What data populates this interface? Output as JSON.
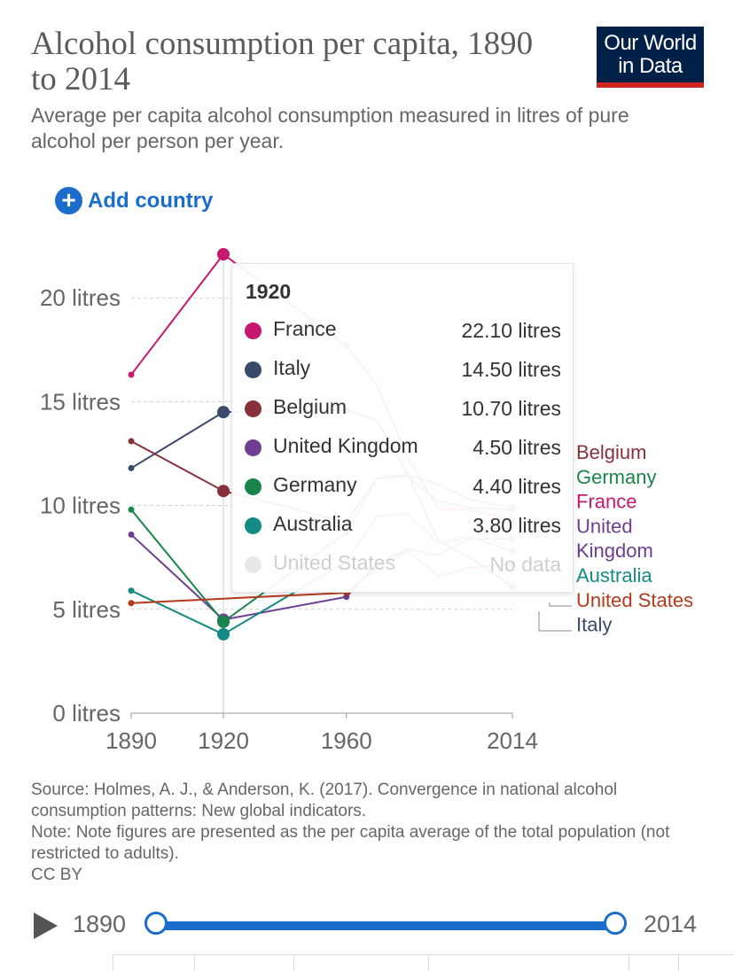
{
  "header": {
    "title": "Alcohol consumption per capita, 1890 to 2014",
    "subtitle": "Average per capita alcohol consumption measured in litres of pure alcohol per person per year.",
    "logo": "Our World in Data",
    "logo_line1": "Our World",
    "logo_line2": "in Data"
  },
  "controls": {
    "add_country_label": "Add country"
  },
  "chart_data": {
    "type": "line",
    "title": "Alcohol consumption per capita, 1890 to 2014",
    "ylim": [
      0,
      22.1
    ],
    "xlim": [
      1890,
      2014
    ],
    "y_ticks": [
      {
        "value": 0,
        "label": "0 litres"
      },
      {
        "value": 5,
        "label": "5 litres"
      },
      {
        "value": 10,
        "label": "10 litres"
      },
      {
        "value": 15,
        "label": "15 litres"
      },
      {
        "value": 20,
        "label": "20 litres"
      }
    ],
    "x_ticks": [
      {
        "value": 1890,
        "label": "1890"
      },
      {
        "value": 1920,
        "label": "1920"
      },
      {
        "value": 1960,
        "label": "1960"
      },
      {
        "value": 2014,
        "label": "2014"
      }
    ],
    "grid": true,
    "legend": "right",
    "highlight_year": 1920,
    "series": [
      {
        "name": "France",
        "color": "#c8176f",
        "x": [
          1890,
          1920,
          1960,
          1970,
          1980,
          1990,
          2000,
          2014
        ],
        "y": [
          16.3,
          22.1,
          17.7,
          15.8,
          12.3,
          9.8,
          9.8,
          9.3
        ]
      },
      {
        "name": "Italy",
        "color": "#3a4a6b",
        "x": [
          1890,
          1920,
          1960,
          1970,
          1980,
          1990,
          2000,
          2014
        ],
        "y": [
          11.8,
          14.5,
          14.6,
          14.1,
          11.5,
          8.3,
          7.5,
          6.1
        ]
      },
      {
        "name": "Belgium",
        "color": "#883039",
        "x": [
          1890,
          1920,
          1960,
          1970,
          1980,
          1990,
          2000,
          2014
        ],
        "y": [
          13.1,
          10.7,
          9.2,
          11.3,
          11.4,
          10.2,
          9.9,
          9.8
        ]
      },
      {
        "name": "United Kingdom",
        "color": "#6d3e91",
        "x": [
          1890,
          1920,
          1960,
          1970,
          1980,
          1990,
          2000,
          2014
        ],
        "y": [
          8.6,
          4.5,
          5.6,
          7.2,
          7.9,
          7.6,
          8.4,
          8.4
        ]
      },
      {
        "name": "Germany",
        "color": "#18864a",
        "x": [
          1890,
          1920,
          1960,
          1970,
          1980,
          1990,
          2000,
          2014
        ],
        "y": [
          9.8,
          4.4,
          8.7,
          11.3,
          11.5,
          11.0,
          10.3,
          9.9
        ]
      },
      {
        "name": "Australia",
        "color": "#148a84",
        "x": [
          1890,
          1920,
          1960,
          1970,
          1980,
          1990,
          2000,
          2014
        ],
        "y": [
          5.9,
          3.8,
          7.3,
          9.5,
          9.6,
          8.2,
          8.5,
          7.8
        ]
      },
      {
        "name": "United States",
        "color": "#b53a1a",
        "x": [
          1890,
          1960,
          1970,
          1980,
          1990,
          2000,
          2014
        ],
        "y": [
          5.3,
          5.8,
          7.0,
          7.8,
          6.6,
          7.0,
          7.2
        ]
      }
    ],
    "legend_labels": [
      {
        "text": "Belgium",
        "color": "#883039"
      },
      {
        "text": "Germany",
        "color": "#18864a"
      },
      {
        "text": "France",
        "color": "#c8176f"
      },
      {
        "text": "United",
        "color": "#6d3e91"
      },
      {
        "text": "Kingdom",
        "color": "#6d3e91"
      },
      {
        "text": "Australia",
        "color": "#148a84"
      },
      {
        "text": "United States",
        "color": "#b53a1a"
      },
      {
        "text": "Italy",
        "color": "#3a4a6b"
      }
    ]
  },
  "tooltip": {
    "year": "1920",
    "rows": [
      {
        "name": "France",
        "value": "22.10 litres",
        "color": "#c8176f"
      },
      {
        "name": "Italy",
        "value": "14.50 litres",
        "color": "#3a4a6b"
      },
      {
        "name": "Belgium",
        "value": "10.70 litres",
        "color": "#883039"
      },
      {
        "name": "United Kingdom",
        "value": "4.50 litres",
        "color": "#6d3e91"
      },
      {
        "name": "Germany",
        "value": "4.40 litres",
        "color": "#18864a"
      },
      {
        "name": "Australia",
        "value": "3.80 litres",
        "color": "#148a84"
      },
      {
        "name": "United States",
        "value": "No data",
        "color": "#e8e8e8",
        "nodata": true
      }
    ]
  },
  "footer": {
    "source": "Source: Holmes, A. J., & Anderson, K. (2017). Convergence in national alcohol consumption patterns: New global indicators.",
    "note": "Note: Note figures are presented as the per capita average of the total population (not restricted to adults).",
    "license": "CC BY"
  },
  "timeline": {
    "start_label": "1890",
    "end_label": "2014",
    "range": [
      1890,
      2014
    ]
  }
}
